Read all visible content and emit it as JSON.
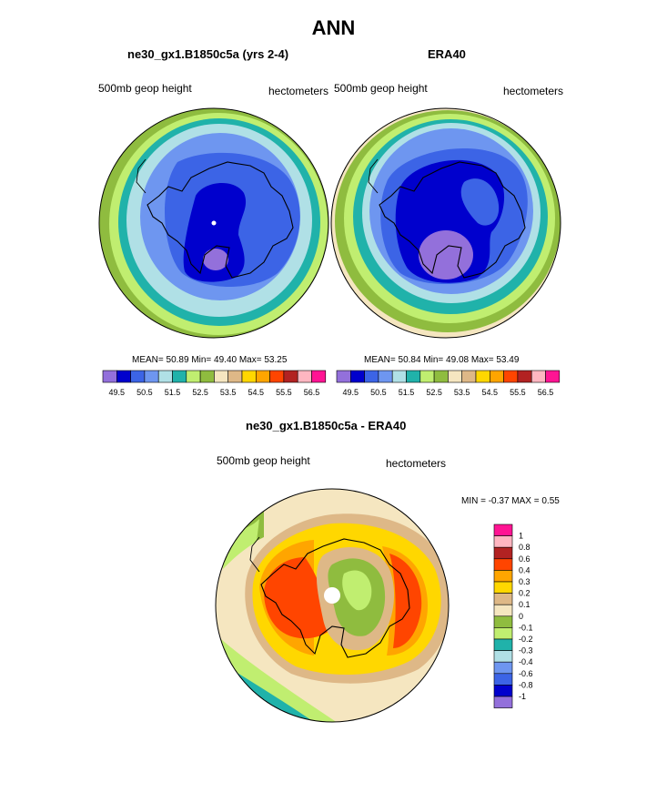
{
  "figure": {
    "title": "ANN",
    "colors": {
      "land": "#000000",
      "background": "#ffffff"
    }
  },
  "chart_data": [
    {
      "type": "heatmap",
      "projection": "south-polar-stereographic",
      "title": "ne30_gx1.B1850c5a (yrs 2-4)",
      "left_label": "500mb geop height",
      "right_label": "hectometers",
      "stats_text": "MEAN=  50.89  Min=  49.40  Max=  53.25",
      "stats": {
        "mean": 50.89,
        "min": 49.4,
        "max": 53.25
      },
      "colorbar": {
        "orientation": "horizontal",
        "levels": [
          49.5,
          50,
          50.5,
          51,
          51.5,
          52,
          52.5,
          53,
          53.5,
          54,
          54.5,
          55,
          55.5,
          56,
          56.5
        ],
        "tick_labels": [
          "49.5",
          "50.5",
          "51.5",
          "52.5",
          "53.5",
          "54.5",
          "55.5",
          "56.5"
        ],
        "colors": [
          "#9370db",
          "#0000cd",
          "#3c64e6",
          "#6e96f0",
          "#b0e0e6",
          "#20b2aa",
          "#c0ee70",
          "#8fbc3f",
          "#f5e6c0",
          "#deb887",
          "#ffd700",
          "#ffa500",
          "#ff4500",
          "#b22222",
          "#ffb6c1",
          "#ff1493"
        ]
      }
    },
    {
      "type": "heatmap",
      "projection": "south-polar-stereographic",
      "title": "ERA40",
      "left_label": "500mb geop height",
      "right_label": "hectometers",
      "stats_text": "MEAN=  50.84  Min=  49.08  Max=  53.49",
      "stats": {
        "mean": 50.84,
        "min": 49.08,
        "max": 53.49
      },
      "colorbar": {
        "orientation": "horizontal",
        "levels": [
          49.5,
          50,
          50.5,
          51,
          51.5,
          52,
          52.5,
          53,
          53.5,
          54,
          54.5,
          55,
          55.5,
          56,
          56.5
        ],
        "tick_labels": [
          "49.5",
          "50.5",
          "51.5",
          "52.5",
          "53.5",
          "54.5",
          "55.5",
          "56.5"
        ],
        "colors": [
          "#9370db",
          "#0000cd",
          "#3c64e6",
          "#6e96f0",
          "#b0e0e6",
          "#20b2aa",
          "#c0ee70",
          "#8fbc3f",
          "#f5e6c0",
          "#deb887",
          "#ffd700",
          "#ffa500",
          "#ff4500",
          "#b22222",
          "#ffb6c1",
          "#ff1493"
        ]
      }
    },
    {
      "type": "heatmap",
      "projection": "south-polar-stereographic",
      "title": "ne30_gx1.B1850c5a - ERA40",
      "left_label": "500mb geop height",
      "right_label": "hectometers",
      "stats_text": "MIN =  -0.37 MAX =   0.55",
      "stats": {
        "min": -0.37,
        "max": 0.55
      },
      "colorbar": {
        "orientation": "vertical",
        "levels": [
          -1,
          -0.8,
          -0.6,
          -0.4,
          -0.3,
          -0.2,
          -0.1,
          0,
          0.1,
          0.2,
          0.3,
          0.4,
          0.6,
          0.8,
          1
        ],
        "tick_labels": [
          "1",
          "0.8",
          "0.6",
          "0.4",
          "0.3",
          "0.2",
          "0.1",
          "0",
          "-0.1",
          "-0.2",
          "-0.3",
          "-0.4",
          "-0.6",
          "-0.8",
          "-1"
        ],
        "colors": [
          "#ff1493",
          "#ffb6c1",
          "#b22222",
          "#ff4500",
          "#ffa500",
          "#ffd700",
          "#deb887",
          "#f5e6c0",
          "#8fbc3f",
          "#c0ee70",
          "#20b2aa",
          "#b0e0e6",
          "#6e96f0",
          "#3c64e6",
          "#0000cd",
          "#9370db"
        ]
      }
    }
  ]
}
